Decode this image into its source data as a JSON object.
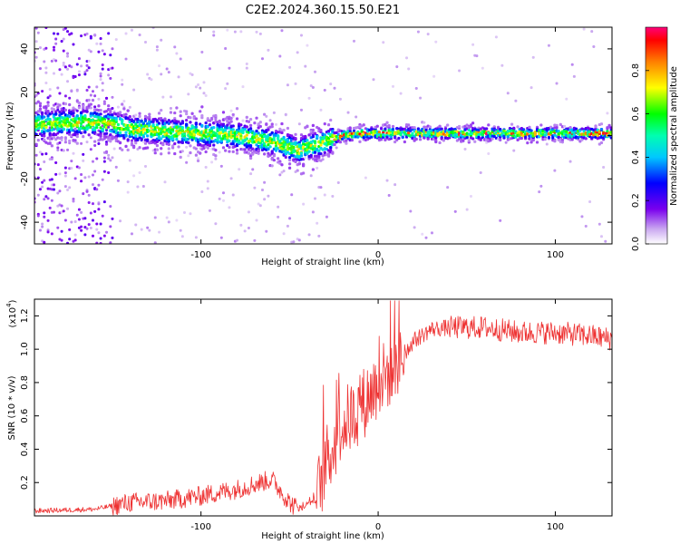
{
  "title": "C2E2.2024.360.15.50.E21",
  "chart_data": [
    {
      "type": "heatmap",
      "xlabel": "Height of straight line (km)",
      "ylabel": "Frequency (Hz)",
      "xlim": [
        -194,
        132
      ],
      "ylim": [
        -50,
        50
      ],
      "x_ticks": [
        "-100",
        "0",
        "100"
      ],
      "y_ticks": [
        "-40",
        "-20",
        "0",
        "20",
        "40"
      ],
      "colorbar": {
        "label": "Normalized spectral amplitude",
        "range": [
          0.0,
          1.0
        ],
        "ticks": [
          "0.0",
          "0.2",
          "0.4",
          "0.6",
          "0.8"
        ]
      },
      "ridge": {
        "x": [
          -194,
          -175,
          -160,
          -150,
          -140,
          -120,
          -100,
          -80,
          -65,
          -55,
          -48,
          -44,
          -40,
          -34,
          -30,
          -24,
          -20,
          -10,
          0,
          20,
          50,
          80,
          100,
          120,
          132
        ],
        "y": [
          5,
          6,
          6,
          5,
          3,
          2,
          1,
          0,
          -2,
          -4,
          -6,
          -7,
          -5,
          -4,
          -3,
          -1,
          0,
          1,
          1,
          1,
          1,
          1,
          1,
          1,
          1
        ]
      }
    },
    {
      "type": "line",
      "xlabel": "Height of straight line (km)",
      "ylabel": "SNR (10 * v/v)",
      "y_scale_label": "(x10",
      "y_scale_exp": "4",
      "xlim": [
        -194,
        132
      ],
      "ylim": [
        0,
        1.3
      ],
      "x_ticks": [
        "-100",
        "0",
        "100"
      ],
      "y_ticks": [
        "0.2",
        "0.4",
        "0.6",
        "0.8",
        "1.0",
        "1.2"
      ],
      "color": "#ee3333",
      "series": [
        {
          "x": [
            -194,
            -160,
            -140,
            -120,
            -100,
            -80,
            -60,
            -50,
            -45,
            -35,
            -30,
            -20,
            -10,
            0,
            5,
            10,
            20,
            30,
            40,
            60,
            80,
            100,
            120,
            132
          ],
          "values": [
            0.03,
            0.04,
            0.08,
            0.09,
            0.12,
            0.16,
            0.22,
            0.08,
            0.04,
            0.1,
            0.3,
            0.55,
            0.65,
            0.8,
            0.85,
            0.9,
            1.05,
            1.12,
            1.13,
            1.13,
            1.1,
            1.1,
            1.08,
            1.06
          ]
        }
      ]
    }
  ]
}
